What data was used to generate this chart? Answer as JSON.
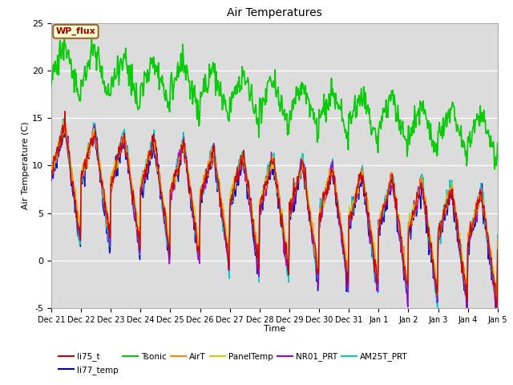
{
  "title": "Air Temperatures",
  "xlabel": "Time",
  "ylabel": "Air Temperature (C)",
  "ylim": [
    -5,
    25
  ],
  "bg_color": "#dcdcdc",
  "plot_bg": "#dcdcdc",
  "series": {
    "li75_t": {
      "color": "#cc0000",
      "lw": 1.0,
      "zorder": 4
    },
    "li77_temp": {
      "color": "#0000bb",
      "lw": 1.0,
      "zorder": 3
    },
    "Tsonic": {
      "color": "#00cc00",
      "lw": 1.3,
      "zorder": 5
    },
    "AirT": {
      "color": "#ff8800",
      "lw": 1.0,
      "zorder": 4
    },
    "PanelTemp": {
      "color": "#cccc00",
      "lw": 1.0,
      "zorder": 4
    },
    "NR01_PRT": {
      "color": "#aa00cc",
      "lw": 1.0,
      "zorder": 4
    },
    "AM25T_PRT": {
      "color": "#00cccc",
      "lw": 1.2,
      "zorder": 3
    }
  },
  "xtick_labels": [
    "Dec 21",
    "Dec 22",
    "Dec 23",
    "Dec 24",
    "Dec 25",
    "Dec 26",
    "Dec 27",
    "Dec 28",
    "Dec 29",
    "Dec 30",
    "Dec 31",
    "Jan 1",
    "Jan 2",
    "Jan 3",
    "Jan 4",
    "Jan 5"
  ],
  "ytick_labels": [
    "-5",
    "0",
    "5",
    "10",
    "15",
    "20",
    "25"
  ],
  "ytick_positions": [
    -5,
    0,
    5,
    10,
    15,
    20,
    25
  ],
  "wp_flux_box": {
    "text": "WP_flux",
    "facecolor": "#ffffcc",
    "edgecolor": "#996633",
    "textcolor": "#990000",
    "fontsize": 8
  },
  "legend_items": [
    {
      "label": "li75_t",
      "color": "#cc0000"
    },
    {
      "label": "li77_temp",
      "color": "#0000bb"
    },
    {
      "label": "Tsonic",
      "color": "#00cc00"
    },
    {
      "label": "AirT",
      "color": "#ff8800"
    },
    {
      "label": "PanelTemp",
      "color": "#cccc00"
    },
    {
      "label": "NR01_PRT",
      "color": "#aa00cc"
    },
    {
      "label": "AM25T_PRT",
      "color": "#00cccc"
    }
  ]
}
